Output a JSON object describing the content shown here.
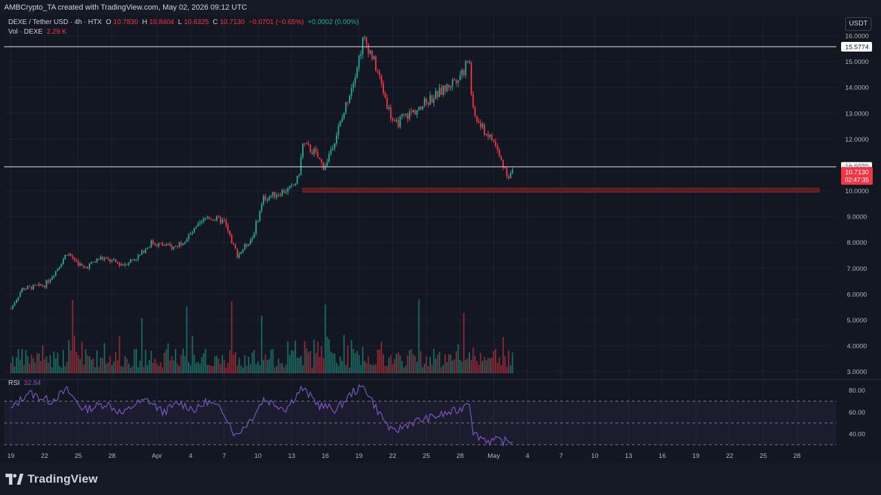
{
  "header": {
    "credit": "AMBCrypto_TA created with TradingView.com, May 02, 2026 09:12 UTC"
  },
  "legend": {
    "symbol": "DEXE / Tether USD · 4h · HTX",
    "open_key": "O",
    "open": "10.7830",
    "high_key": "H",
    "high": "10.8404",
    "low_key": "L",
    "low": "10.6325",
    "close_key": "C",
    "close": "10.7130",
    "change": "−0.0701 (−0.65%)",
    "extra": "+0.0002 (0.00%)",
    "volume_label": "Vol · DEXE",
    "volume": "2.29 K"
  },
  "rsi_legend": {
    "label": "RSI",
    "value": "32.84"
  },
  "currency": "USDT",
  "footer": {
    "brand": "TradingView"
  },
  "colors": {
    "up": "#22ab94",
    "down": "#f23645",
    "rsi": "#7e57c2",
    "level_line": "#d1d4dc",
    "support_zone": "#5d1a1f",
    "grid": "#1f2330"
  },
  "chart_data": [
    {
      "type": "candlestick",
      "name": "DEXE / Tether USD",
      "timeframe": "4h",
      "y_axis": {
        "ticks": [
          "16.0000",
          "15.0000",
          "14.0000",
          "13.0000",
          "12.0000",
          "11.0000",
          "10.0000",
          "9.0000",
          "8.0000",
          "7.0000",
          "6.0000",
          "5.0000",
          "4.0000",
          "3.0000"
        ],
        "tick_values": [
          16,
          15,
          14,
          13,
          12,
          11,
          10,
          9,
          8,
          7,
          6,
          5,
          4,
          3
        ],
        "ylim": [
          2.75,
          16.8
        ],
        "scale": "linear"
      },
      "x_axis": {
        "ticks": [
          "19",
          "22",
          "25",
          "28",
          "Apr",
          "4",
          "7",
          "10",
          "13",
          "16",
          "19",
          "22",
          "25",
          "28",
          "May",
          "4",
          "7",
          "10",
          "13",
          "16",
          "19",
          "22",
          "25",
          "28"
        ],
        "tick_days": [
          0,
          3,
          6,
          9,
          13,
          16,
          19,
          22,
          25,
          28,
          31,
          34,
          37,
          40,
          43,
          46,
          49,
          52,
          55,
          58,
          61,
          64,
          67,
          70
        ],
        "xlim_days": [
          -0.6,
          73.5
        ]
      },
      "price_keypoints": [
        [
          0,
          5.45
        ],
        [
          1.0,
          6.2
        ],
        [
          3.0,
          6.35
        ],
        [
          4.0,
          6.9
        ],
        [
          5.0,
          7.6
        ],
        [
          6.5,
          7.0
        ],
        [
          8.0,
          7.4
        ],
        [
          10.0,
          7.15
        ],
        [
          11.5,
          7.5
        ],
        [
          12.5,
          8.0
        ],
        [
          14.5,
          7.8
        ],
        [
          16.0,
          8.3
        ],
        [
          17.5,
          9.0
        ],
        [
          19.0,
          8.8
        ],
        [
          19.6,
          8.1
        ],
        [
          20.2,
          7.5
        ],
        [
          21.5,
          8.2
        ],
        [
          22.5,
          9.7
        ],
        [
          25.0,
          10.1
        ],
        [
          25.6,
          10.5
        ],
        [
          26.0,
          11.8
        ],
        [
          27.0,
          11.5
        ],
        [
          27.9,
          10.9
        ],
        [
          29.5,
          12.8
        ],
        [
          30.8,
          14.8
        ],
        [
          31.4,
          15.9
        ],
        [
          32.0,
          15.4
        ],
        [
          32.8,
          14.4
        ],
        [
          33.6,
          13.2
        ],
        [
          34.2,
          12.5
        ],
        [
          34.8,
          12.8
        ],
        [
          36.0,
          13.1
        ],
        [
          37.2,
          13.5
        ],
        [
          38.8,
          14.0
        ],
        [
          40.4,
          14.7
        ],
        [
          40.8,
          15.2
        ],
        [
          41.1,
          13.1
        ],
        [
          41.8,
          12.5
        ],
        [
          43.0,
          11.9
        ],
        [
          43.6,
          11.2
        ],
        [
          44.3,
          10.6
        ],
        [
          44.8,
          10.75
        ]
      ],
      "last_candle_day": 44.8,
      "levels": [
        {
          "label": "15.5774",
          "value": 15.5774
        },
        {
          "label": "10.9272",
          "value": 10.9272
        }
      ],
      "support_zone": {
        "from": 9.95,
        "to": 10.1,
        "start_day": 26.0
      },
      "last_price": {
        "value": "10.7130",
        "countdown": "02:47:35"
      }
    },
    {
      "type": "bar",
      "name": "Vol · DEXE",
      "spike_days": [
        5.5,
        11.7,
        15.7,
        19.7,
        22.3,
        28.0,
        36.3,
        40.4
      ],
      "last_value": "2.29 K"
    },
    {
      "type": "line",
      "name": "RSI",
      "y_axis": {
        "ticks": [
          "80.00",
          "60.00",
          "40.00"
        ],
        "tick_values": [
          80,
          60,
          40
        ],
        "ylim": [
          28,
          88
        ]
      },
      "band": {
        "upper": 70,
        "middle": 50,
        "lower": 30
      },
      "keypoints": [
        [
          0,
          62
        ],
        [
          1.5,
          78
        ],
        [
          3.5,
          70
        ],
        [
          5.0,
          80
        ],
        [
          6.5,
          62
        ],
        [
          8.5,
          68
        ],
        [
          10.0,
          58
        ],
        [
          11.0,
          67
        ],
        [
          12.2,
          71
        ],
        [
          13.5,
          60
        ],
        [
          15.0,
          68
        ],
        [
          16.5,
          62
        ],
        [
          17.5,
          70
        ],
        [
          19.0,
          60
        ],
        [
          20.0,
          38
        ],
        [
          21.5,
          55
        ],
        [
          22.5,
          72
        ],
        [
          24.5,
          63
        ],
        [
          25.9,
          82
        ],
        [
          27.5,
          66
        ],
        [
          29.0,
          62
        ],
        [
          30.5,
          79
        ],
        [
          31.5,
          83
        ],
        [
          32.5,
          64
        ],
        [
          34.0,
          41
        ],
        [
          35.5,
          50
        ],
        [
          37.5,
          55
        ],
        [
          40.0,
          62
        ],
        [
          40.8,
          72
        ],
        [
          41.2,
          40
        ],
        [
          42.5,
          34
        ],
        [
          44.8,
          32.84
        ]
      ],
      "last_value": "32.84"
    }
  ]
}
